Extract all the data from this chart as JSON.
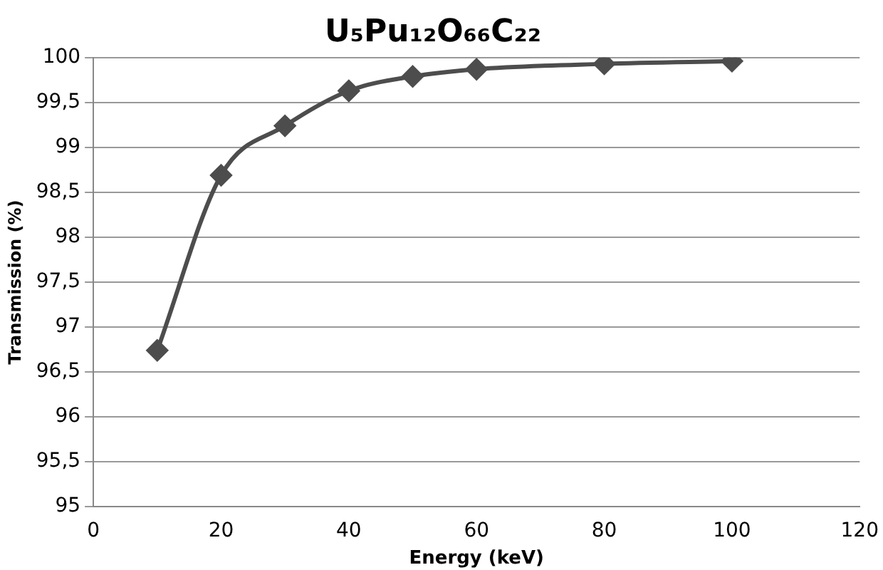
{
  "chart_data": {
    "type": "line",
    "title": "U₅Pu₁₂O₆₆C₂₂",
    "xlabel": "Energy (keV)",
    "ylabel": "Transmission (%)",
    "x": [
      10,
      20,
      30,
      40,
      50,
      60,
      80,
      100
    ],
    "series": [
      {
        "color": "#4d4d4d",
        "values": [
          96.74,
          98.69,
          99.24,
          99.63,
          99.79,
          99.87,
          99.93,
          99.96
        ]
      }
    ],
    "xlim": [
      0,
      120
    ],
    "xticks": [
      0,
      20,
      40,
      60,
      80,
      100,
      120
    ],
    "ylim": [
      95,
      100
    ],
    "yticks": [
      95,
      {
        "value": 95.5,
        "label": "95,5"
      },
      96,
      {
        "value": 96.5,
        "label": "96,5"
      },
      97,
      {
        "value": 97.5,
        "label": "97,5"
      },
      98,
      {
        "value": 98.5,
        "label": "98,5"
      },
      99,
      {
        "value": 99.5,
        "label": "99,5"
      },
      100
    ],
    "grid": "y",
    "legend": false,
    "marker": "diamond",
    "line_style": "solid"
  }
}
